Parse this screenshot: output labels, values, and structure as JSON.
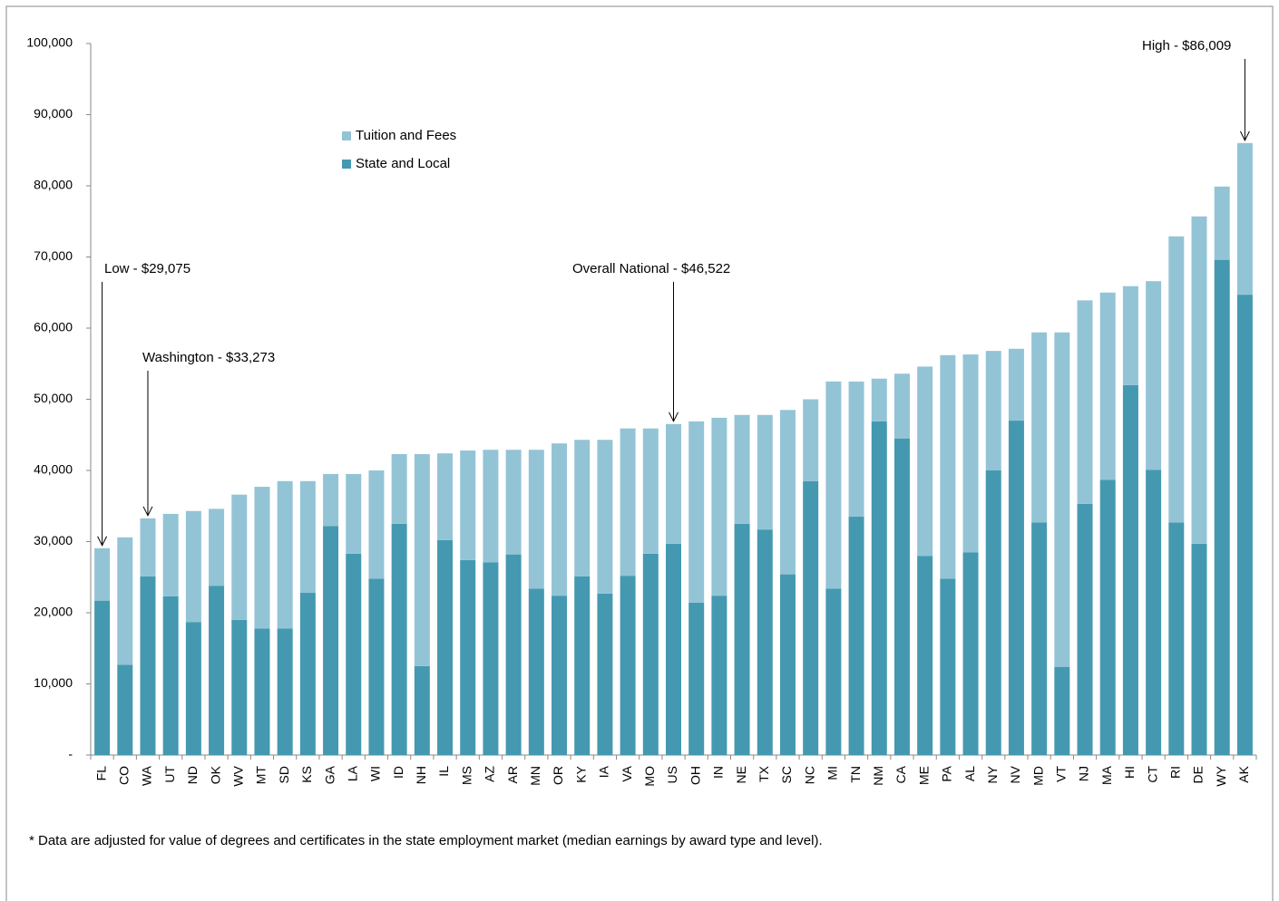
{
  "chart_data": {
    "type": "bar",
    "stacked": true,
    "categories": [
      "FL",
      "CO",
      "WA",
      "UT",
      "ND",
      "OK",
      "WV",
      "MT",
      "SD",
      "KS",
      "GA",
      "LA",
      "WI",
      "ID",
      "NH",
      "IL",
      "MS",
      "AZ",
      "AR",
      "MN",
      "OR",
      "KY",
      "IA",
      "VA",
      "MO",
      "US",
      "OH",
      "IN",
      "NE",
      "TX",
      "SC",
      "NC",
      "MI",
      "TN",
      "NM",
      "CA",
      "ME",
      "PA",
      "AL",
      "NY",
      "NV",
      "MD",
      "VT",
      "NJ",
      "MA",
      "HI",
      "CT",
      "RI",
      "DE",
      "WY",
      "AK"
    ],
    "series": [
      {
        "name": "State and Local",
        "color": "#4499b0",
        "values": [
          21700,
          12700,
          25100,
          22300,
          18700,
          23800,
          19000,
          17800,
          17800,
          22800,
          32200,
          28300,
          24800,
          32500,
          12500,
          30200,
          27400,
          27100,
          28200,
          23400,
          22400,
          25100,
          22700,
          25200,
          28300,
          29700,
          21400,
          22400,
          32500,
          31700,
          25400,
          38500,
          23400,
          33500,
          46900,
          44500,
          28000,
          24800,
          28500,
          40000,
          47000,
          32700,
          12400,
          35300,
          38700,
          52000,
          40100,
          32700,
          29700,
          69600,
          64700
        ]
      },
      {
        "name": "Tuition and Fees",
        "color": "#93c4d6",
        "values": [
          7375,
          17900,
          8173,
          11600,
          15600,
          10800,
          17600,
          19900,
          20700,
          15700,
          7300,
          11200,
          15200,
          9800,
          29800,
          12200,
          15400,
          15800,
          14700,
          19500,
          21400,
          19200,
          21600,
          20700,
          17600,
          16822,
          25500,
          25000,
          15300,
          16100,
          23100,
          11500,
          29100,
          19000,
          6000,
          9100,
          26600,
          31400,
          27800,
          16800,
          10100,
          26700,
          47000,
          28600,
          26300,
          13900,
          26500,
          40200,
          46000,
          10300,
          21309
        ]
      }
    ],
    "ylim": [
      0,
      100000
    ],
    "yticks": [
      {
        "value": 0,
        "label": "-"
      },
      {
        "value": 10000,
        "label": "10,000"
      },
      {
        "value": 20000,
        "label": "20,000"
      },
      {
        "value": 30000,
        "label": "30,000"
      },
      {
        "value": 40000,
        "label": "40,000"
      },
      {
        "value": 50000,
        "label": "50,000"
      },
      {
        "value": 60000,
        "label": "60,000"
      },
      {
        "value": 70000,
        "label": "70,000"
      },
      {
        "value": 80000,
        "label": "80,000"
      },
      {
        "value": 90000,
        "label": "90,000"
      },
      {
        "value": 100000,
        "label": "100,000"
      }
    ],
    "grid": false,
    "legend": "top-left",
    "annotations": [
      "Low - $29,075",
      "Washington - $33,273",
      "Overall National - $46,522",
      "High - $86,009"
    ],
    "footnote": "* Data are adjusted for value of degrees and certificates in the state employment market (median earnings by award type and level)."
  }
}
